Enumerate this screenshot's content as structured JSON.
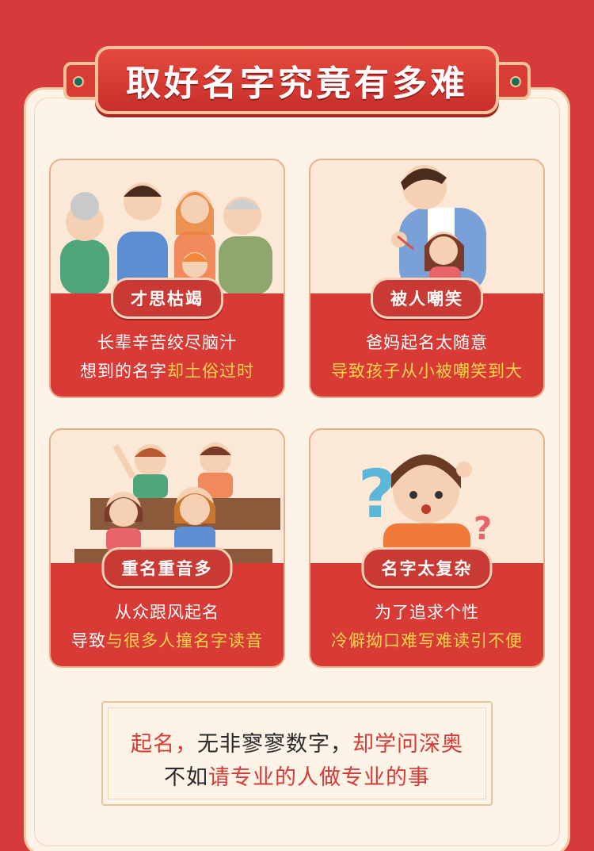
{
  "title": "取好名字究竟有多难",
  "cards": [
    {
      "tag": "才思枯竭",
      "line1": "长辈辛苦绞尽脑汁",
      "line2_plain": "想到的名字",
      "line2_hl": "却土俗过时"
    },
    {
      "tag": "被人嘲笑",
      "line1": "爸妈起名太随意",
      "line2_plain": "",
      "line2_hl": "导致孩子从小被嘲笑到大"
    },
    {
      "tag": "重名重音多",
      "line1": "从众跟风起名",
      "line2_plain": "导致",
      "line2_hl": "与很多人撞名字读音"
    },
    {
      "tag": "名字太复杂",
      "line1": "为了追求个性",
      "line2_plain": "",
      "line2_hl": "冷僻拗口难写难读引不便"
    }
  ],
  "footer": {
    "l1_red1": "起名，",
    "l1_dark": "无非寥寥数字，",
    "l1_red2": "却学问深奥",
    "l2_dark": "不如",
    "l2_red": "请专业的人做专业的事"
  },
  "colors": {
    "bg": "#d63a3a",
    "panel": "#fdf3e6",
    "highlight": "#ffd54a"
  }
}
